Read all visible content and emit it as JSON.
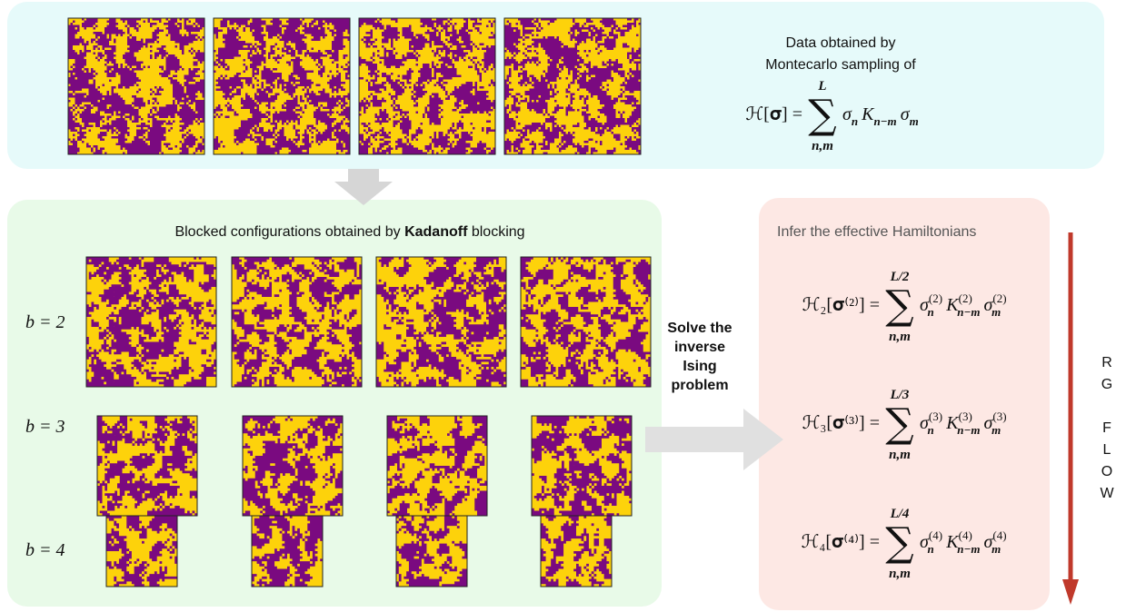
{
  "top": {
    "lines": [
      "Data obtained by",
      "Montecarlo sampling of"
    ],
    "formula": {
      "lhs": "ℋ[𝛔] =",
      "sum": "∑",
      "upper": "L",
      "lower": "n,m",
      "term": [
        {
          "base": "σ",
          "sub": "n"
        },
        {
          "base": "K",
          "sub": "n−m"
        },
        {
          "base": "σ",
          "sub": "m"
        }
      ]
    }
  },
  "blocking": {
    "title_pre": "Blocked configurations obtained by",
    "title_bold": "Kadanoff",
    "title_post": "blocking",
    "rows": [
      "b = 2",
      "b = 3",
      "b = 4"
    ]
  },
  "solve": {
    "lines": [
      "Solve the",
      "inverse",
      "Ising",
      "problem"
    ]
  },
  "infer": {
    "title": "Infer the effective Hamiltonians",
    "hamiltonians": [
      {
        "lhs": "ℋ₂[𝛔⁽²⁾] =",
        "sum": "∑",
        "upper": "L/2",
        "lower": "n,m",
        "term": [
          {
            "base": "σ",
            "sub": "n",
            "sup": "(2)"
          },
          {
            "base": "K",
            "sub": "n−m",
            "sup": "(2)"
          },
          {
            "base": "σ",
            "sub": "m",
            "sup": "(2)"
          }
        ]
      },
      {
        "lhs": "ℋ₃[𝛔⁽³⁾] =",
        "sum": "∑",
        "upper": "L/3",
        "lower": "n,m",
        "term": [
          {
            "base": "σ",
            "sub": "n",
            "sup": "(3)"
          },
          {
            "base": "K",
            "sub": "n−m",
            "sup": "(3)"
          },
          {
            "base": "σ",
            "sub": "m",
            "sup": "(3)"
          }
        ]
      },
      {
        "lhs": "ℋ₄[𝛔⁽⁴⁾] =",
        "sum": "∑",
        "upper": "L/4",
        "lower": "n,m",
        "term": [
          {
            "base": "σ",
            "sub": "n",
            "sup": "(4)"
          },
          {
            "base": "K",
            "sub": "n−m",
            "sup": "(4)"
          },
          {
            "base": "σ",
            "sub": "m",
            "sup": "(4)"
          }
        ]
      }
    ]
  },
  "flow": {
    "letters": [
      "R",
      "G",
      "F",
      "L",
      "O",
      "W"
    ]
  }
}
